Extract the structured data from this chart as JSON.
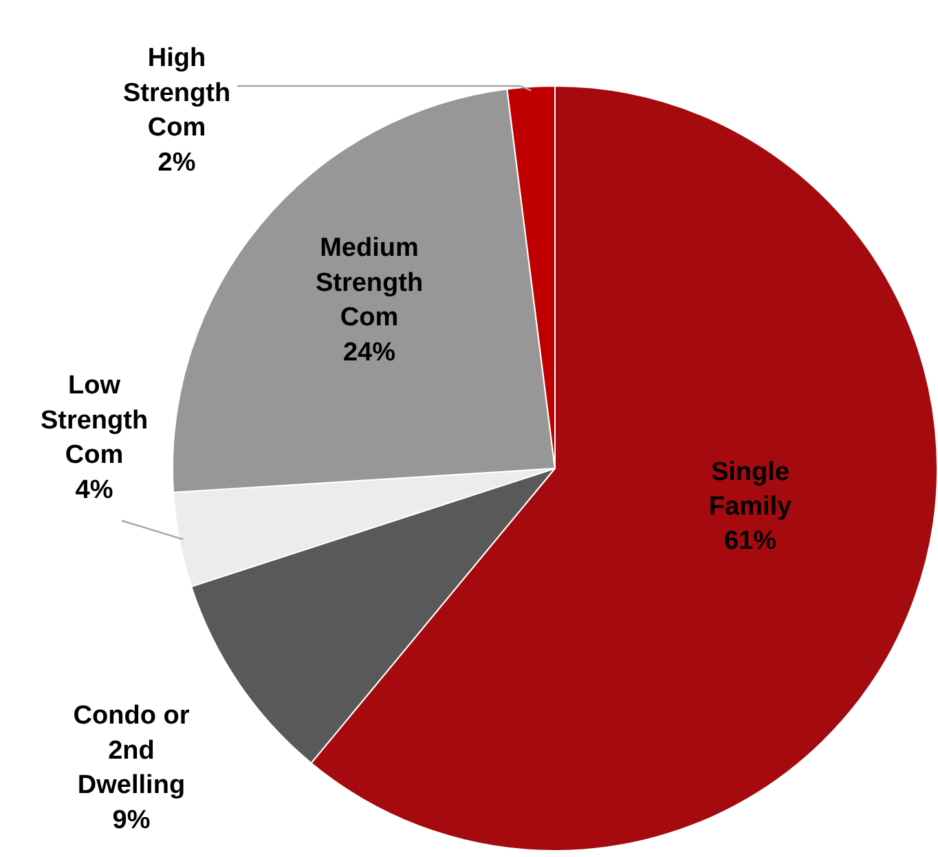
{
  "chart_data": {
    "type": "pie",
    "categories": [
      "Single Family",
      "Condo or 2nd Dwelling",
      "Low Strength Com",
      "Medium Strength Com",
      "High Strength Com"
    ],
    "values": [
      61,
      9,
      4,
      24,
      2
    ],
    "colors": [
      "#a50a0e",
      "#595959",
      "#ececec",
      "#979797",
      "#c00000"
    ],
    "value_labels": [
      "61%",
      "9%",
      "4%",
      "24%",
      "2%"
    ]
  }
}
